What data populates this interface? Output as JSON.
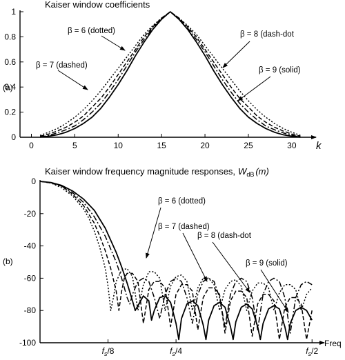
{
  "chart_data": [
    {
      "type": "line",
      "panel_label": "(a)",
      "title": "Kaiser window coefficients",
      "xlabel": "k",
      "ylabel": "",
      "xlim": [
        0,
        32
      ],
      "ylim": [
        0,
        1
      ],
      "x_ticks": [
        0,
        5,
        10,
        15,
        20,
        25,
        30
      ],
      "x_tick_labels": [
        "0",
        "5",
        "10",
        "15",
        "20",
        "25",
        "30"
      ],
      "y_ticks": [
        0,
        0.2,
        0.4,
        0.6,
        0.8,
        1
      ],
      "y_tick_labels": [
        "0",
        "0.2",
        "0.4",
        "0.6",
        "0.8",
        "1"
      ],
      "grid": false,
      "series": [
        {
          "beta": 6,
          "style": "dotted",
          "x": [
            1,
            2,
            3,
            4,
            5,
            6,
            7,
            8,
            9,
            10,
            11,
            12,
            13,
            14,
            15,
            16,
            17,
            18,
            19,
            20,
            21,
            22,
            23,
            24,
            25,
            26,
            27,
            28,
            29,
            30,
            31
          ],
          "values": [
            0.015,
            0.04,
            0.07,
            0.11,
            0.16,
            0.22,
            0.29,
            0.37,
            0.46,
            0.55,
            0.64,
            0.73,
            0.82,
            0.89,
            0.95,
            1.0,
            0.95,
            0.89,
            0.82,
            0.73,
            0.64,
            0.55,
            0.46,
            0.37,
            0.29,
            0.22,
            0.16,
            0.11,
            0.07,
            0.04,
            0.015
          ]
        },
        {
          "beta": 7,
          "style": "dashed",
          "x": [
            1,
            2,
            3,
            4,
            5,
            6,
            7,
            8,
            9,
            10,
            11,
            12,
            13,
            14,
            15,
            16,
            17,
            18,
            19,
            20,
            21,
            22,
            23,
            24,
            25,
            26,
            27,
            28,
            29,
            30,
            31
          ],
          "values": [
            0.008,
            0.025,
            0.05,
            0.08,
            0.12,
            0.17,
            0.24,
            0.31,
            0.4,
            0.5,
            0.6,
            0.7,
            0.8,
            0.88,
            0.95,
            1.0,
            0.95,
            0.88,
            0.8,
            0.7,
            0.6,
            0.5,
            0.4,
            0.31,
            0.24,
            0.17,
            0.12,
            0.08,
            0.05,
            0.025,
            0.008
          ]
        },
        {
          "beta": 8,
          "style": "dash-dot",
          "x": [
            1,
            2,
            3,
            4,
            5,
            6,
            7,
            8,
            9,
            10,
            11,
            12,
            13,
            14,
            15,
            16,
            17,
            18,
            19,
            20,
            21,
            22,
            23,
            24,
            25,
            26,
            27,
            28,
            29,
            30,
            31
          ],
          "values": [
            0.003,
            0.015,
            0.035,
            0.06,
            0.09,
            0.14,
            0.2,
            0.27,
            0.36,
            0.46,
            0.57,
            0.68,
            0.78,
            0.87,
            0.94,
            1.0,
            0.94,
            0.87,
            0.78,
            0.68,
            0.57,
            0.46,
            0.36,
            0.27,
            0.2,
            0.14,
            0.09,
            0.06,
            0.035,
            0.015,
            0.003
          ]
        },
        {
          "beta": 9,
          "style": "solid",
          "x": [
            1,
            2,
            3,
            4,
            5,
            6,
            7,
            8,
            9,
            10,
            11,
            12,
            13,
            14,
            15,
            16,
            17,
            18,
            19,
            20,
            21,
            22,
            23,
            24,
            25,
            26,
            27,
            28,
            29,
            30,
            31
          ],
          "values": [
            0.001,
            0.008,
            0.02,
            0.04,
            0.07,
            0.11,
            0.16,
            0.23,
            0.32,
            0.42,
            0.53,
            0.65,
            0.76,
            0.86,
            0.94,
            1.0,
            0.94,
            0.86,
            0.76,
            0.65,
            0.53,
            0.42,
            0.32,
            0.23,
            0.16,
            0.11,
            0.07,
            0.04,
            0.02,
            0.008,
            0.001
          ]
        }
      ],
      "annotations": [
        {
          "text": "β = 6 (dotted)",
          "series": "β = 6"
        },
        {
          "text": "β = 7 (dashed)",
          "series": "β = 7"
        },
        {
          "text": "β = 8 (dash-dot",
          "series": "β = 8"
        },
        {
          "text": "β = 9 (solid)",
          "series": "β = 9"
        }
      ]
    },
    {
      "type": "line",
      "panel_label": "(b)",
      "title": "Kaiser window frequency magnitude responses,",
      "title_math": {
        "base": "W",
        "sub": "dB",
        "arg": "(m)"
      },
      "xlabel": "Freq",
      "ylabel": "",
      "xlim": [
        0,
        0.52
      ],
      "ylim": [
        -100,
        0
      ],
      "x_ticks": [
        0.125,
        0.25,
        0.5
      ],
      "x_tick_labels": [
        "fs/8",
        "fs/4",
        "fs/2"
      ],
      "y_ticks": [
        0,
        -20,
        -40,
        -60,
        -80,
        -100
      ],
      "y_tick_labels": [
        "0",
        "-20",
        "-40",
        "-60",
        "-80",
        "-100"
      ],
      "grid": false,
      "series": [
        {
          "beta": 6,
          "style": "dotted",
          "x": [
            0,
            0.02,
            0.04,
            0.06,
            0.08,
            0.09,
            0.1,
            0.11,
            0.12,
            0.125,
            0.13,
            0.135,
            0.14,
            0.15,
            0.16,
            0.17,
            0.18,
            0.19,
            0.2,
            0.21,
            0.22,
            0.23,
            0.24,
            0.25,
            0.26,
            0.27,
            0.28,
            0.29,
            0.3,
            0.31,
            0.32,
            0.33,
            0.34,
            0.35,
            0.36,
            0.37,
            0.38,
            0.39,
            0.4,
            0.41,
            0.42,
            0.43,
            0.44,
            0.45,
            0.46,
            0.47,
            0.48,
            0.49,
            0.5
          ],
          "values": [
            0,
            -1,
            -4,
            -9,
            -17,
            -23,
            -31,
            -41,
            -54,
            -65,
            -80,
            -72,
            -62,
            -55,
            -54,
            -59,
            -80,
            -64,
            -56,
            -56,
            -60,
            -80,
            -65,
            -59,
            -58,
            -62,
            -80,
            -66,
            -60,
            -60,
            -64,
            -80,
            -67,
            -62,
            -61,
            -65,
            -80,
            -68,
            -63,
            -63,
            -66,
            -80,
            -69,
            -64,
            -64,
            -67,
            -80,
            -70,
            -66
          ]
        },
        {
          "beta": 7,
          "style": "dashed",
          "x": [
            0,
            0.02,
            0.04,
            0.06,
            0.08,
            0.1,
            0.11,
            0.12,
            0.13,
            0.14,
            0.145,
            0.15,
            0.155,
            0.16,
            0.17,
            0.18,
            0.19,
            0.2,
            0.21,
            0.22,
            0.23,
            0.24,
            0.25,
            0.26,
            0.27,
            0.28,
            0.29,
            0.3,
            0.31,
            0.32,
            0.33,
            0.34,
            0.35,
            0.36,
            0.37,
            0.38,
            0.39,
            0.4,
            0.41,
            0.42,
            0.43,
            0.44,
            0.45,
            0.46,
            0.47,
            0.48,
            0.49,
            0.5
          ],
          "values": [
            0,
            -1,
            -3,
            -8,
            -15,
            -26,
            -34,
            -43,
            -54,
            -68,
            -80,
            -68,
            -60,
            -57,
            -57,
            -62,
            -88,
            -67,
            -62,
            -62,
            -66,
            -90,
            -70,
            -64,
            -64,
            -68,
            -92,
            -72,
            -66,
            -66,
            -70,
            -94,
            -74,
            -68,
            -68,
            -72,
            -96,
            -76,
            -70,
            -70,
            -74,
            -98,
            -78,
            -72,
            -72,
            -76,
            -98,
            -80
          ]
        },
        {
          "beta": 8,
          "style": "dash-dot",
          "x": [
            0,
            0.02,
            0.04,
            0.06,
            0.08,
            0.1,
            0.12,
            0.14,
            0.15,
            0.16,
            0.165,
            0.17,
            0.18,
            0.19,
            0.2,
            0.21,
            0.22,
            0.23,
            0.24,
            0.25,
            0.26,
            0.27,
            0.28,
            0.29,
            0.3,
            0.31,
            0.32,
            0.33,
            0.34,
            0.35,
            0.36,
            0.37,
            0.38,
            0.39,
            0.4,
            0.41,
            0.42,
            0.43,
            0.44,
            0.45,
            0.46,
            0.47,
            0.48,
            0.49,
            0.5
          ],
          "values": [
            0,
            -0.8,
            -3,
            -7,
            -13,
            -22,
            -34,
            -50,
            -60,
            -72,
            -76,
            -70,
            -62,
            -60,
            -62,
            -72,
            -85,
            -70,
            -62,
            -60,
            -62,
            -72,
            -88,
            -70,
            -62,
            -60,
            -62,
            -72,
            -90,
            -70,
            -62,
            -60,
            -62,
            -72,
            -92,
            -70,
            -62,
            -60,
            -62,
            -72,
            -94,
            -72,
            -64,
            -62,
            -64
          ]
        },
        {
          "beta": 9,
          "style": "solid",
          "x": [
            0,
            0.02,
            0.04,
            0.06,
            0.08,
            0.1,
            0.12,
            0.14,
            0.15,
            0.16,
            0.17,
            0.175,
            0.18,
            0.19,
            0.2,
            0.205,
            0.21,
            0.22,
            0.23,
            0.24,
            0.25,
            0.255,
            0.26,
            0.27,
            0.28,
            0.29,
            0.3,
            0.305,
            0.31,
            0.32,
            0.33,
            0.34,
            0.35,
            0.355,
            0.36,
            0.37,
            0.38,
            0.39,
            0.4,
            0.405,
            0.41,
            0.42,
            0.43,
            0.44,
            0.45,
            0.455,
            0.46,
            0.47,
            0.48,
            0.49,
            0.5
          ],
          "values": [
            0,
            -0.7,
            -2.5,
            -6,
            -11,
            -18,
            -29,
            -44,
            -53,
            -63,
            -74,
            -80,
            -77,
            -71,
            -74,
            -86,
            -80,
            -72,
            -71,
            -75,
            -88,
            -98,
            -85,
            -76,
            -74,
            -77,
            -89,
            -98,
            -86,
            -77,
            -75,
            -78,
            -90,
            -98,
            -87,
            -78,
            -76,
            -79,
            -90,
            -98,
            -88,
            -79,
            -77,
            -79,
            -90,
            -98,
            -88,
            -80,
            -78,
            -80,
            -86
          ]
        }
      ],
      "annotations": [
        {
          "text": "β = 6 (dotted)",
          "series": "β = 6"
        },
        {
          "text": "β = 7 (dashed)",
          "series": "β = 7"
        },
        {
          "text": "β = 8 (dash-dot",
          "series": "β = 8"
        },
        {
          "text": "β = 9 (solid)",
          "series": "β = 9"
        }
      ]
    }
  ]
}
